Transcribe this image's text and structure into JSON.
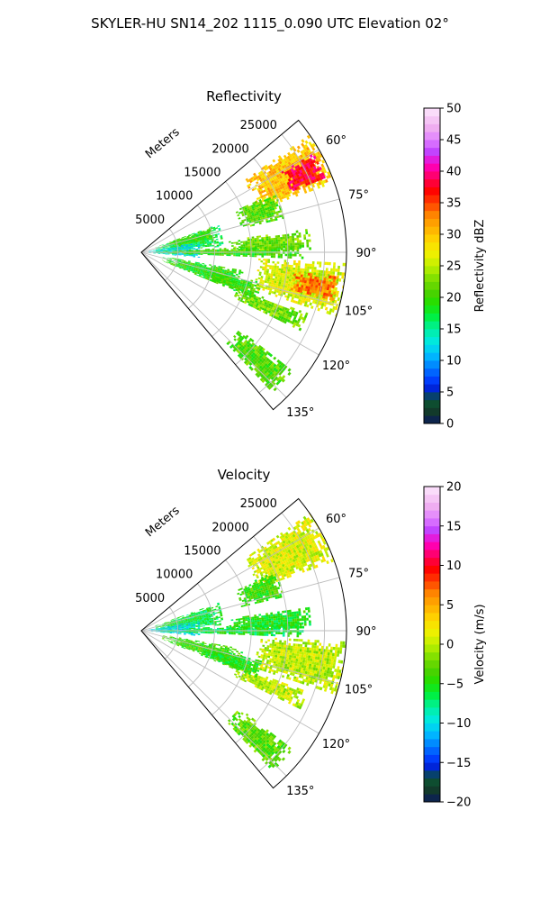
{
  "figure": {
    "title": "SKYLER-HU  SN14_202  1115_0.090 UTC Elevation 02°"
  },
  "chart_data": [
    {
      "type": "heatmap",
      "id": "reflectivity",
      "title": "Reflectivity",
      "radial_label": "Meters",
      "radial_ticks": [
        5000,
        10000,
        15000,
        20000,
        25000
      ],
      "radial_tick_labels": [
        "5000",
        "10000",
        "15000",
        "20000",
        "25000"
      ],
      "rmax": 28000,
      "theta_ticks": [
        60,
        75,
        90,
        105,
        120,
        135
      ],
      "theta_tick_labels": [
        "60°",
        "75°",
        "90°",
        "105°",
        "120°",
        "135°"
      ],
      "theta_range": [
        50,
        140
      ],
      "grid": true,
      "colorbar": {
        "label": "Reflectivity dBZ",
        "range": [
          0,
          50
        ],
        "ticks": [
          0,
          5,
          10,
          15,
          20,
          25,
          30,
          35,
          40,
          45,
          50
        ],
        "tick_labels": [
          "0",
          "5",
          "10",
          "15",
          "20",
          "25",
          "30",
          "35",
          "40",
          "45",
          "50"
        ]
      },
      "features": [
        {
          "az": [
            55,
            70
          ],
          "r": [
            17000,
            28000
          ],
          "value": 30
        },
        {
          "az": [
            60,
            68
          ],
          "r": [
            22000,
            27000
          ],
          "value": 38
        },
        {
          "az": [
            93,
            108
          ],
          "r": [
            16000,
            28000
          ],
          "value": 26
        },
        {
          "az": [
            97,
            104
          ],
          "r": [
            21000,
            27000
          ],
          "value": 33
        },
        {
          "az": [
            70,
            86
          ],
          "r": [
            2000,
            11000
          ],
          "value": 17
        },
        {
          "az": [
            70,
            80
          ],
          "r": [
            4000,
            10000
          ],
          "value": 20
        },
        {
          "az": [
            80,
            95
          ],
          "r": [
            1000,
            8000
          ],
          "value": 13
        },
        {
          "az": [
            87,
            92
          ],
          "r": [
            2000,
            22000
          ],
          "value": 20
        },
        {
          "az": [
            100,
            112
          ],
          "r": [
            3000,
            14000
          ],
          "value": 19
        },
        {
          "az": [
            110,
            116
          ],
          "r": [
            14000,
            24000
          ],
          "value": 22
        },
        {
          "az": [
            128,
            137
          ],
          "r": [
            17000,
            26000
          ],
          "value": 21
        },
        {
          "az": [
            104,
            112
          ],
          "r": [
            9000,
            17000
          ],
          "value": 20
        },
        {
          "az": [
            82,
            89
          ],
          "r": [
            12000,
            23000
          ],
          "value": 22
        },
        {
          "az": [
            66,
            76
          ],
          "r": [
            14000,
            20000
          ],
          "value": 21
        }
      ]
    },
    {
      "type": "heatmap",
      "id": "velocity",
      "title": "Velocity",
      "radial_label": "Meters",
      "radial_ticks": [
        5000,
        10000,
        15000,
        20000,
        25000
      ],
      "radial_tick_labels": [
        "5000",
        "10000",
        "15000",
        "20000",
        "25000"
      ],
      "rmax": 28000,
      "theta_ticks": [
        60,
        75,
        90,
        105,
        120,
        135
      ],
      "theta_tick_labels": [
        "60°",
        "75°",
        "90°",
        "105°",
        "120°",
        "135°"
      ],
      "theta_range": [
        50,
        140
      ],
      "grid": true,
      "colorbar": {
        "label": "Velocity (m/s)",
        "range": [
          -20,
          20
        ],
        "ticks": [
          -20,
          -15,
          -10,
          -5,
          0,
          5,
          10,
          15,
          20
        ],
        "tick_labels": [
          "−20",
          "−15",
          "−10",
          "−5",
          "0",
          "5",
          "10",
          "15",
          "20"
        ]
      },
      "features": [
        {
          "az": [
            55,
            70
          ],
          "r": [
            17000,
            28000
          ],
          "value": 1
        },
        {
          "az": [
            93,
            108
          ],
          "r": [
            16000,
            28000
          ],
          "value": 0
        },
        {
          "az": [
            70,
            86
          ],
          "r": [
            2000,
            11000
          ],
          "value": -6
        },
        {
          "az": [
            80,
            95
          ],
          "r": [
            1000,
            8000
          ],
          "value": -10
        },
        {
          "az": [
            87,
            92
          ],
          "r": [
            2000,
            22000
          ],
          "value": -6
        },
        {
          "az": [
            100,
            112
          ],
          "r": [
            3000,
            14000
          ],
          "value": -4
        },
        {
          "az": [
            110,
            116
          ],
          "r": [
            14000,
            24000
          ],
          "value": 0
        },
        {
          "az": [
            128,
            137
          ],
          "r": [
            17000,
            26000
          ],
          "value": -3
        },
        {
          "az": [
            104,
            112
          ],
          "r": [
            9000,
            17000
          ],
          "value": -5
        },
        {
          "az": [
            82,
            89
          ],
          "r": [
            12000,
            23000
          ],
          "value": -5
        },
        {
          "az": [
            66,
            76
          ],
          "r": [
            14000,
            20000
          ],
          "value": -4
        }
      ]
    }
  ]
}
